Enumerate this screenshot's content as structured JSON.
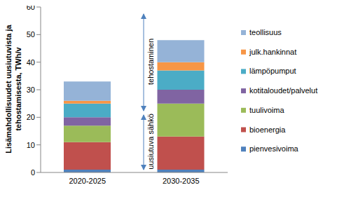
{
  "chart_data": {
    "type": "bar",
    "stacked": true,
    "y_label": "Lisämahdollisuudet uusiutuvista ja tehostamisesta, TWh/v",
    "categories": [
      "2020-2025",
      "2030-2035"
    ],
    "series": [
      {
        "name": "pienvesivoima",
        "color": "#4f81bd",
        "values": [
          1,
          1
        ]
      },
      {
        "name": "bioenergia",
        "color": "#c0504d",
        "values": [
          10,
          12
        ]
      },
      {
        "name": "tuulivoima",
        "color": "#9bbb59",
        "values": [
          6,
          12
        ]
      },
      {
        "name": "kotitaloudet/palvelut",
        "color": "#8064a2",
        "values": [
          3,
          5
        ]
      },
      {
        "name": "lämpöpumput",
        "color": "#4bacc6",
        "values": [
          5,
          7
        ]
      },
      {
        "name": "julk.hankinnat",
        "color": "#f79646",
        "values": [
          1,
          3
        ]
      },
      {
        "name": "teollisuus",
        "color": "#95b3d7",
        "values": [
          7,
          8
        ]
      }
    ],
    "ylim": [
      0,
      60
    ],
    "yticks": [
      0,
      10,
      20,
      30,
      40,
      50,
      60
    ],
    "grid": false,
    "legend": "right",
    "annotations": [
      "tehostaminen",
      "uusiutuva sähkö"
    ]
  }
}
